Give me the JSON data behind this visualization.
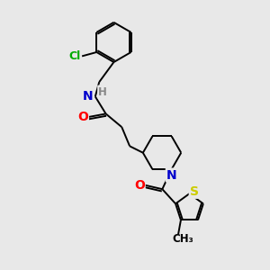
{
  "bg_color": "#e8e8e8",
  "bond_color": "#000000",
  "atom_colors": {
    "N": "#0000cc",
    "O": "#ff0000",
    "S": "#cccc00",
    "Cl": "#00aa00",
    "H": "#888888",
    "C": "#000000"
  },
  "font_size": 9,
  "lw": 1.4
}
